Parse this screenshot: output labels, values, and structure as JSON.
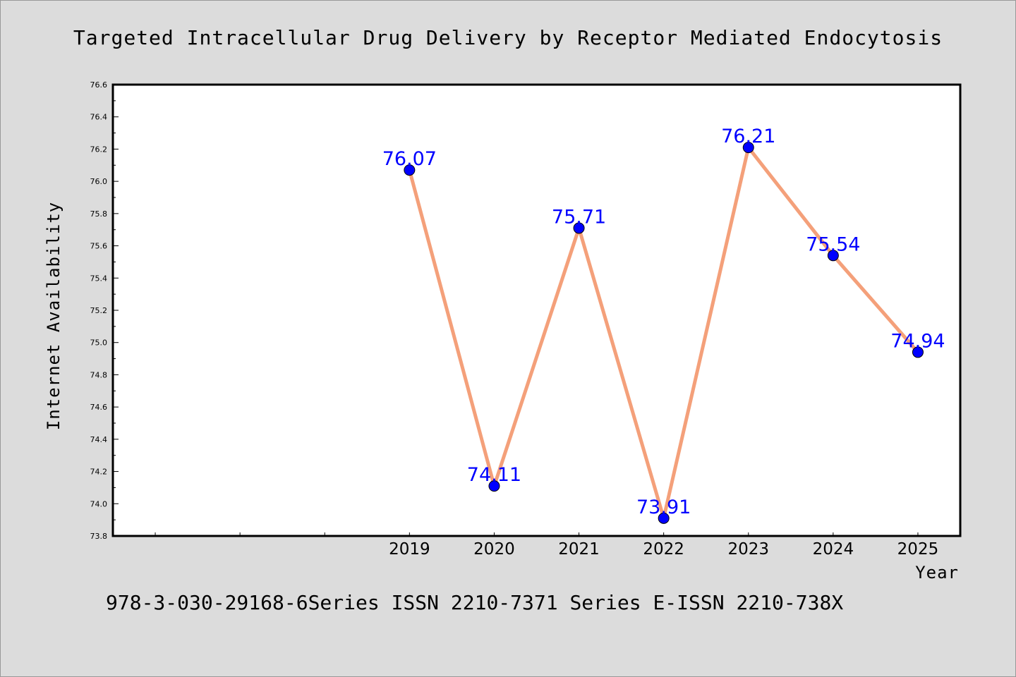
{
  "chart_data": {
    "type": "line",
    "title": "Targeted Intracellular Drug Delivery by Receptor Mediated Endocytosis",
    "xlabel": "Year",
    "ylabel": "Internet Availability",
    "categories": [
      "2019",
      "2020",
      "2021",
      "2022",
      "2023",
      "2024",
      "2025"
    ],
    "series": [
      {
        "values": [
          76.07,
          74.11,
          75.71,
          73.91,
          76.21,
          75.54,
          74.94
        ]
      }
    ],
    "data_labels": [
      "76.07",
      "74.11",
      "75.71",
      "73.91",
      "76.21",
      "75.54",
      "74.94"
    ],
    "ylim": [
      73.8,
      76.6
    ],
    "yticks": [
      "73.8",
      "74.0",
      "74.2",
      "74.4",
      "74.6",
      "74.8",
      "75.0",
      "75.2",
      "75.4",
      "75.6",
      "75.8",
      "76.0",
      "76.2",
      "76.4",
      "76.6"
    ],
    "x_slots_total": 10,
    "grid": false,
    "line_color": "#f4a07a",
    "marker_color": "#0000ff",
    "label_color": "#0000ff",
    "background_color": "#dcdcdc",
    "plot_background_color": "#ffffff"
  },
  "footer": "978-3-030-29168-6Series ISSN 2210-7371 Series E-ISSN 2210-738X"
}
